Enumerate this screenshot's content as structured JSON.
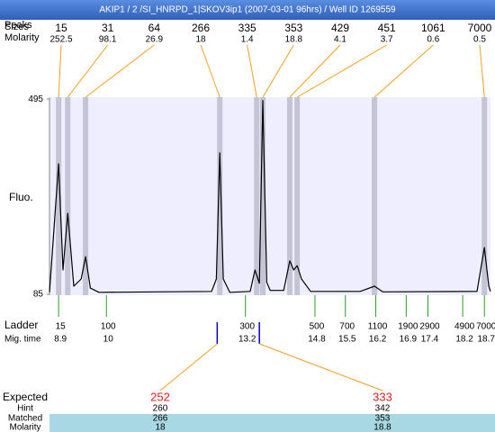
{
  "chart_data": {
    "type": "line",
    "title": "AKIP1 / 2 /SI_HNRPD_1|SKOV3ip1 (2007-03-01 96hrs) / Well ID 1269559",
    "y_label": "Fluo.",
    "x": [
      8.69,
      8.9,
      9.0,
      9.11,
      9.25,
      9.42,
      9.52,
      9.63,
      9.83,
      12.42,
      12.53,
      12.61,
      12.69,
      12.84,
      13.31,
      13.42,
      13.52,
      13.6,
      13.69,
      13.77,
      14.08,
      14.22,
      14.31,
      14.39,
      14.49,
      14.7,
      15.84,
      16.17,
      16.36,
      18.53,
      18.7,
      18.8,
      18.84
    ],
    "series": [
      {
        "color": "#000000",
        "values": [
          89,
          359,
          136,
          255,
          102,
          117,
          164,
          98,
          89,
          91,
          117,
          382,
          117,
          89,
          91,
          136,
          108,
          492,
          110,
          93,
          93,
          155,
          136,
          145,
          117,
          91,
          91,
          102,
          90,
          91,
          183,
          102,
          91
        ]
      }
    ],
    "xlim": [
      8.69,
      18.84
    ],
    "ylim": [
      83,
      499
    ],
    "yticks": [
      495,
      85
    ]
  },
  "peaks": {
    "heading": "Peaks",
    "size_label": "Sizes",
    "molarity_label": "Molarity",
    "sizes": [
      15,
      31,
      64,
      266,
      335,
      353,
      429,
      451,
      1061,
      7000
    ],
    "molarity": [
      252.5,
      98.1,
      26.9,
      18,
      1.4,
      18.8,
      4.1,
      3.7,
      0.6,
      0.5
    ],
    "times": [
      8.9,
      9.11,
      9.52,
      12.61,
      13.46,
      13.6,
      14.22,
      14.39,
      16.17,
      18.7
    ]
  },
  "ladder": {
    "label": "Ladder",
    "time_label": "Mig. time",
    "sizes": [
      15,
      100,
      300,
      500,
      700,
      1100,
      1900,
      2900,
      4900,
      7000
    ],
    "times": [
      8.9,
      10,
      13.2,
      14.8,
      15.5,
      16.2,
      16.9,
      17.4,
      18.2,
      18.7
    ]
  },
  "expected": {
    "label": "Expected",
    "hint_label": "Hint",
    "matched_label": "Matched",
    "molarity_label": "Molarity",
    "items": [
      {
        "expected": 252,
        "hint": 260,
        "matched": 266,
        "molarity": 18,
        "time": 12.55
      },
      {
        "expected": 333,
        "hint": 342,
        "matched": 353,
        "molarity": 18.8,
        "time": 13.52
      }
    ]
  }
}
